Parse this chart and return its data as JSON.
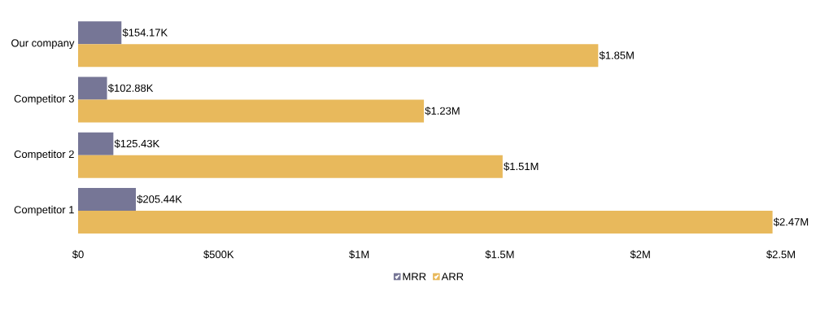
{
  "chart_data": {
    "type": "bar",
    "orientation": "horizontal",
    "categories": [
      "Our company",
      "Competitor 3",
      "Competitor 2",
      "Competitor 1"
    ],
    "series": [
      {
        "name": "MRR",
        "color": "#767696",
        "values": [
          154170,
          102880,
          125430,
          205440
        ],
        "value_labels": [
          "$154.17K",
          "$102.88K",
          "$125.43K",
          "$205.44K"
        ]
      },
      {
        "name": "ARR",
        "color": "#e8b95c",
        "values": [
          1850000,
          1230000,
          1510000,
          2470000
        ],
        "value_labels": [
          "$1.85M",
          "$1.23M",
          "$1.51M",
          "$2.47M"
        ]
      }
    ],
    "xlim": [
      0,
      2500000
    ],
    "xticks": [
      {
        "value": 0,
        "label": "$0"
      },
      {
        "value": 500000,
        "label": "$500K"
      },
      {
        "value": 1000000,
        "label": "$1M"
      },
      {
        "value": 1500000,
        "label": "$1.5M"
      },
      {
        "value": 2000000,
        "label": "$2M"
      },
      {
        "value": 2500000,
        "label": "$2.5M"
      }
    ],
    "legend": "bottom"
  }
}
